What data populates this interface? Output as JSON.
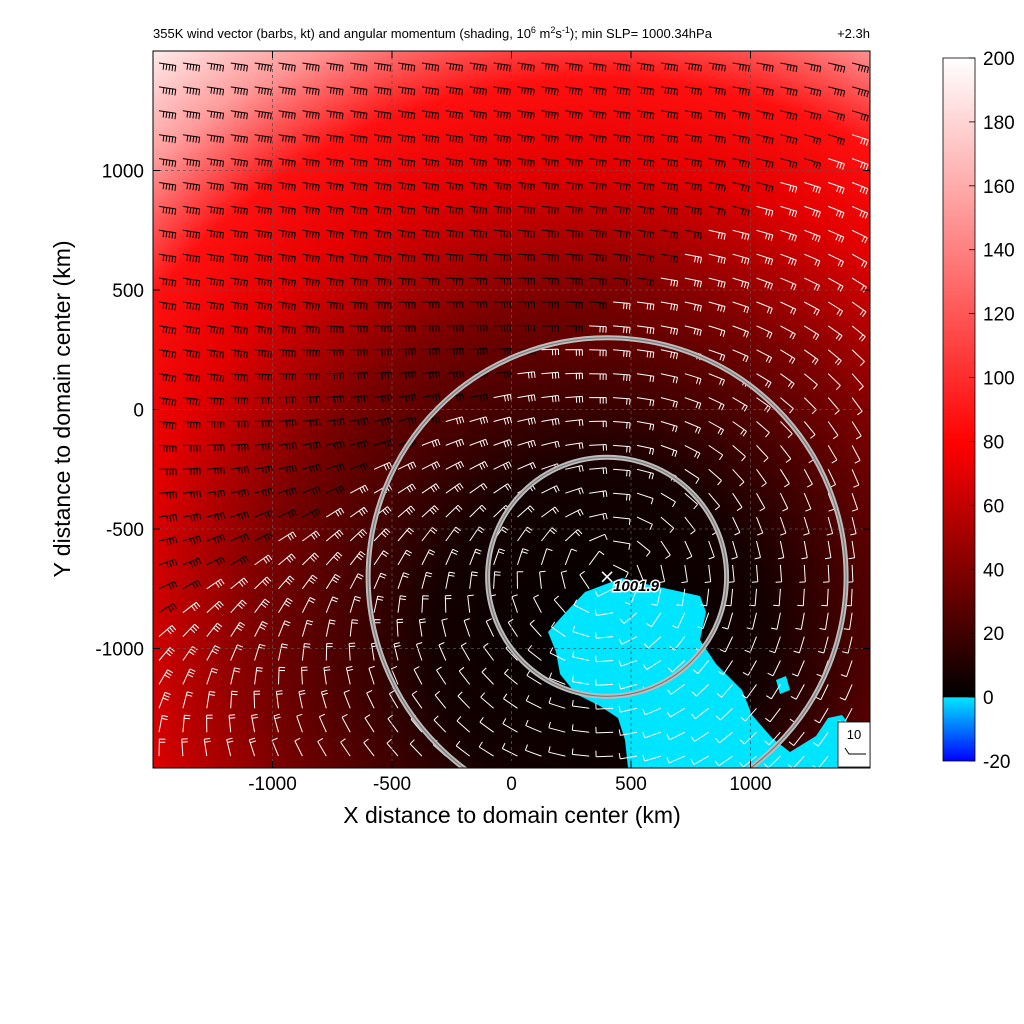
{
  "chart_data": {
    "type": "heatmap",
    "title": "355K wind vector (barbs, kt) and angular momentum (shading, 10",
    "title_sup1": "6",
    "title_mid": " m",
    "title_sup2": "2",
    "title_mid2": "s",
    "title_sup3": "-1",
    "title_end": "); min SLP= 1000.34hPa",
    "time_label": "+2.3h",
    "xlabel": "X distance to domain center (km)",
    "ylabel": "Y distance to domain center (km)",
    "xlim": [
      -1500,
      1500
    ],
    "ylim": [
      -1500,
      1500
    ],
    "xticks": [
      -1000,
      -500,
      0,
      500,
      1000
    ],
    "yticks": [
      -1000,
      -500,
      0,
      500,
      1000
    ],
    "grid": true,
    "colorbar": {
      "range": [
        -20,
        200
      ],
      "ticks": [
        -20,
        0,
        20,
        40,
        60,
        80,
        100,
        120,
        140,
        160,
        180,
        200
      ],
      "colors": [
        "#0000ff",
        "#00e5ff",
        "#000000",
        "#ff0000",
        "#ffffff"
      ]
    },
    "center_marker": {
      "x": 400,
      "y": -700,
      "label": "1001.9"
    },
    "radius_rings_km": [
      500,
      1000
    ],
    "reference_barb": {
      "label": "10",
      "units": "kt"
    }
  }
}
